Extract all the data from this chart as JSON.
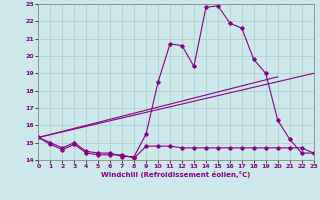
{
  "xlabel": "Windchill (Refroidissement éolien,°C)",
  "xlim": [
    0,
    23
  ],
  "ylim": [
    14,
    23
  ],
  "yticks": [
    14,
    15,
    16,
    17,
    18,
    19,
    20,
    21,
    22,
    23
  ],
  "xticks": [
    0,
    1,
    2,
    3,
    4,
    5,
    6,
    7,
    8,
    9,
    10,
    11,
    12,
    13,
    14,
    15,
    16,
    17,
    18,
    19,
    20,
    21,
    22,
    23
  ],
  "bg_color": "#cce8ea",
  "grid_color": "#aacccc",
  "line_color": "#880088",
  "line1_x": [
    0,
    1,
    2,
    3,
    4,
    5,
    6,
    7,
    8,
    9,
    10,
    11,
    12,
    13,
    14,
    15,
    16,
    17,
    18,
    19,
    20,
    21,
    22,
    23
  ],
  "line1_y": [
    15.3,
    14.9,
    14.6,
    14.9,
    14.4,
    14.3,
    14.3,
    14.3,
    14.1,
    14.8,
    14.8,
    14.8,
    14.7,
    14.7,
    14.7,
    14.7,
    14.7,
    14.7,
    14.7,
    14.7,
    14.7,
    14.7,
    14.7,
    14.4
  ],
  "line2_x": [
    0,
    1,
    2,
    3,
    4,
    5,
    6,
    7,
    8,
    9,
    10,
    11,
    12,
    13,
    14,
    15,
    16,
    17,
    18,
    19,
    20,
    21,
    22,
    23
  ],
  "line2_y": [
    15.3,
    15.0,
    14.7,
    15.0,
    14.5,
    14.4,
    14.4,
    14.2,
    14.2,
    15.5,
    18.5,
    20.7,
    20.6,
    19.4,
    22.8,
    22.9,
    21.9,
    21.6,
    19.8,
    19.0,
    16.3,
    15.2,
    14.4,
    14.4
  ],
  "line3_x": [
    0,
    23
  ],
  "line3_y": [
    15.3,
    19.0
  ],
  "line4_x": [
    0,
    20
  ],
  "line4_y": [
    15.3,
    18.8
  ]
}
